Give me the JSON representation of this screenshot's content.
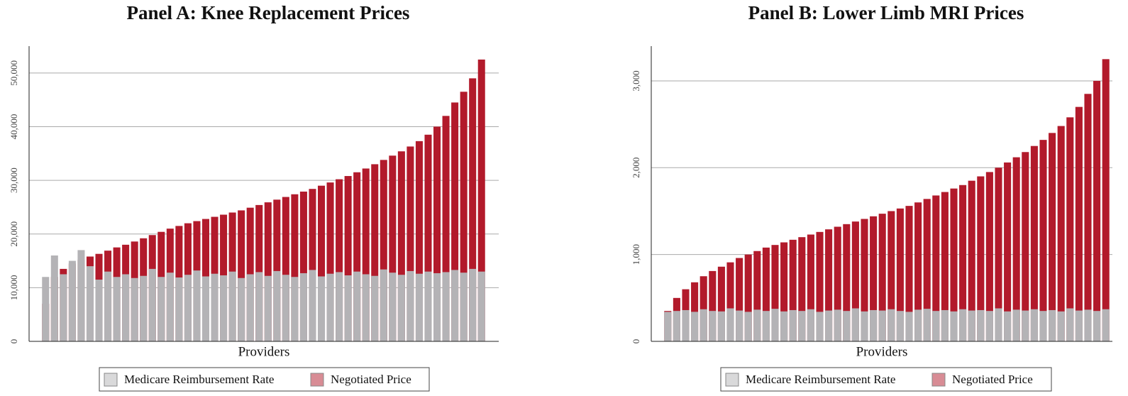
{
  "chart_data": [
    {
      "type": "bar",
      "title": "Panel A: Knee Replacement Prices",
      "x_label": "Providers",
      "ylim": [
        0,
        55000
      ],
      "yticks": [
        0,
        {
          "value": 10000,
          "label": "10,000"
        },
        {
          "value": 20000,
          "label": "20,000"
        },
        {
          "value": 30000,
          "label": "30,000"
        },
        {
          "value": 40000,
          "label": "40,000"
        },
        {
          "value": 50000,
          "label": "50,000"
        }
      ],
      "grid": true,
      "series": [
        {
          "name": "Negotiated Price",
          "color": "#b21a2b",
          "values": [
            7000,
            12000,
            13500,
            14500,
            15200,
            15800,
            16300,
            16900,
            17500,
            18000,
            18600,
            19200,
            19800,
            20400,
            21000,
            21500,
            22000,
            22400,
            22800,
            23200,
            23600,
            24000,
            24400,
            24900,
            25400,
            25900,
            26400,
            26900,
            27400,
            27900,
            28400,
            29000,
            29600,
            30200,
            30800,
            31500,
            32200,
            33000,
            33800,
            34600,
            35400,
            36300,
            37300,
            38500,
            40000,
            42000,
            44500,
            46500,
            49000,
            52500
          ]
        },
        {
          "name": "Medicare Reimbursement Rate",
          "color": "#b4b3b6",
          "values": [
            12000,
            16000,
            12500,
            15000,
            17000,
            14000,
            11500,
            13000,
            12000,
            12500,
            11800,
            12200,
            13500,
            12000,
            12800,
            11900,
            12400,
            13200,
            12100,
            12600,
            12300,
            13000,
            11800,
            12500,
            12900,
            12200,
            13100,
            12400,
            12000,
            12700,
            13300,
            12100,
            12600,
            12900,
            12300,
            13000,
            12500,
            12200,
            13400,
            12800,
            12400,
            13100,
            12600,
            13000,
            12700,
            12900,
            13300,
            12800,
            13500,
            13000
          ]
        }
      ]
    },
    {
      "type": "bar",
      "title": "Panel B: Lower Limb MRI Prices",
      "x_label": "Providers",
      "ylim": [
        0,
        3400
      ],
      "yticks": [
        0,
        {
          "value": 1000,
          "label": "1,000"
        },
        {
          "value": 2000,
          "label": "2,000"
        },
        {
          "value": 3000,
          "label": "3,000"
        }
      ],
      "grid": true,
      "series": [
        {
          "name": "Negotiated Price",
          "color": "#b21a2b",
          "values": [
            350,
            500,
            600,
            680,
            750,
            810,
            860,
            910,
            960,
            1000,
            1040,
            1080,
            1110,
            1140,
            1170,
            1200,
            1230,
            1260,
            1290,
            1320,
            1350,
            1380,
            1410,
            1440,
            1470,
            1500,
            1530,
            1560,
            1600,
            1640,
            1680,
            1720,
            1760,
            1800,
            1850,
            1900,
            1950,
            2000,
            2060,
            2120,
            2180,
            2250,
            2320,
            2400,
            2480,
            2580,
            2700,
            2850,
            3000,
            3250
          ]
        },
        {
          "name": "Medicare Reimbursement Rate",
          "color": "#b4b3b6",
          "values": [
            340,
            350,
            360,
            340,
            370,
            350,
            345,
            380,
            355,
            340,
            365,
            350,
            375,
            345,
            360,
            350,
            370,
            340,
            355,
            365,
            350,
            380,
            345,
            360,
            355,
            370,
            350,
            340,
            365,
            375,
            350,
            360,
            345,
            370,
            355,
            360,
            350,
            380,
            345,
            365,
            355,
            370,
            350,
            360,
            345,
            380,
            355,
            365,
            350,
            370
          ]
        }
      ]
    }
  ]
}
